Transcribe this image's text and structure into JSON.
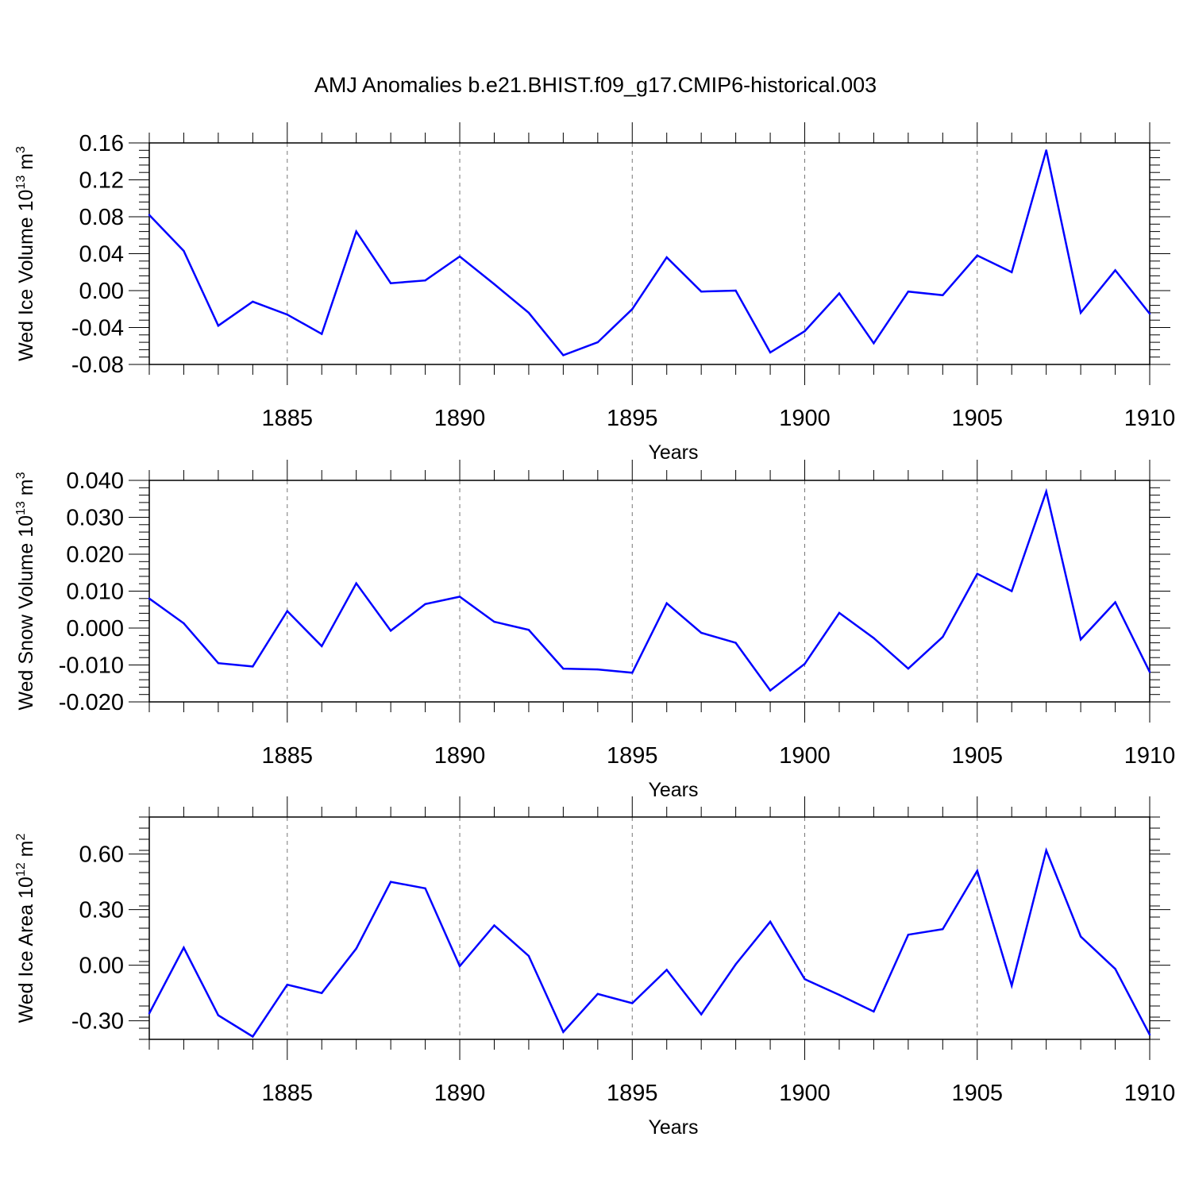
{
  "title": "AMJ Anomalies b.e21.BHIST.f09_g17.CMIP6-historical.003",
  "colors": {
    "line": "#0000ff",
    "axis": "#000000",
    "grid": "#777777"
  },
  "chart_data": [
    {
      "type": "line",
      "ylabel": {
        "main": "Wed Ice Volume 10",
        "sup": "13",
        "unit": " m",
        "unit_sup": "3"
      },
      "xlabel": "Years",
      "xlim": [
        1881,
        1910
      ],
      "ylim": [
        -0.08,
        0.16
      ],
      "yticks": [
        "0.16",
        "0.12",
        "0.08",
        "0.04",
        "0.00",
        "-0.04",
        "-0.08"
      ],
      "ytick_values": [
        0.16,
        0.12,
        0.08,
        0.04,
        0.0,
        -0.04,
        -0.08
      ],
      "xticks": [
        "1885",
        "1890",
        "1895",
        "1900",
        "1905",
        "1910"
      ],
      "xtick_values": [
        1885,
        1890,
        1895,
        1900,
        1905,
        1910
      ],
      "grid": "vertical dashed at major x ticks",
      "x": [
        1881,
        1882,
        1883,
        1884,
        1885,
        1886,
        1887,
        1888,
        1889,
        1890,
        1891,
        1892,
        1893,
        1894,
        1895,
        1896,
        1897,
        1898,
        1899,
        1900,
        1901,
        1902,
        1903,
        1904,
        1905,
        1906,
        1907,
        1908,
        1909,
        1910
      ],
      "series": [
        {
          "values": [
            0.082,
            0.043,
            -0.038,
            -0.012,
            -0.026,
            -0.047,
            0.064,
            0.008,
            0.011,
            0.037,
            0.007,
            -0.024,
            -0.07,
            -0.056,
            -0.02,
            0.036,
            -0.001,
            0.0,
            -0.067,
            -0.044,
            -0.003,
            -0.057,
            -0.001,
            -0.005,
            0.038,
            0.02,
            0.152,
            -0.024,
            0.022,
            -0.025
          ]
        }
      ]
    },
    {
      "type": "line",
      "ylabel": {
        "main": "Wed Snow Volume 10",
        "sup": "13",
        "unit": " m",
        "unit_sup": "3"
      },
      "xlabel": "Years",
      "xlim": [
        1881,
        1910
      ],
      "ylim": [
        -0.02,
        0.04
      ],
      "yticks": [
        "0.040",
        "0.030",
        "0.020",
        "0.010",
        "0.000",
        "-0.010",
        "-0.020"
      ],
      "ytick_values": [
        0.04,
        0.03,
        0.02,
        0.01,
        0.0,
        -0.01,
        -0.02
      ],
      "xticks": [
        "1885",
        "1890",
        "1895",
        "1900",
        "1905",
        "1910"
      ],
      "xtick_values": [
        1885,
        1890,
        1895,
        1900,
        1905,
        1910
      ],
      "grid": "vertical dashed at major x ticks",
      "x": [
        1881,
        1882,
        1883,
        1884,
        1885,
        1886,
        1887,
        1888,
        1889,
        1890,
        1891,
        1892,
        1893,
        1894,
        1895,
        1896,
        1897,
        1898,
        1899,
        1900,
        1901,
        1902,
        1903,
        1904,
        1905,
        1906,
        1907,
        1908,
        1909,
        1910
      ],
      "series": [
        {
          "values": [
            0.008,
            0.0013,
            -0.0095,
            -0.0104,
            0.0046,
            -0.0049,
            0.0121,
            -0.0007,
            0.0065,
            0.0085,
            0.0017,
            -0.0005,
            -0.011,
            -0.0112,
            -0.0121,
            0.0067,
            -0.0013,
            -0.004,
            -0.0169,
            -0.0097,
            0.0041,
            -0.0027,
            -0.011,
            -0.0024,
            0.0147,
            0.01,
            0.037,
            -0.0031,
            0.007,
            -0.0119
          ]
        }
      ]
    },
    {
      "type": "line",
      "ylabel": {
        "main": "Wed Ice Area 10",
        "sup": "12",
        "unit": " m",
        "unit_sup": "2"
      },
      "xlabel": "Years",
      "xlim": [
        1881,
        1910
      ],
      "ylim": [
        -0.4,
        0.8
      ],
      "yticks": [
        "0.60",
        "0.30",
        "0.00",
        "-0.30"
      ],
      "ytick_values": [
        0.6,
        0.3,
        0.0,
        -0.3
      ],
      "xticks": [
        "1885",
        "1890",
        "1895",
        "1900",
        "1905",
        "1910"
      ],
      "xtick_values": [
        1885,
        1890,
        1895,
        1900,
        1905,
        1910
      ],
      "grid": "vertical dashed at major x ticks",
      "x": [
        1881,
        1882,
        1883,
        1884,
        1885,
        1886,
        1887,
        1888,
        1889,
        1890,
        1891,
        1892,
        1893,
        1894,
        1895,
        1896,
        1897,
        1898,
        1899,
        1900,
        1901,
        1902,
        1903,
        1904,
        1905,
        1906,
        1907,
        1908,
        1909,
        1910
      ],
      "series": [
        {
          "values": [
            -0.26,
            0.095,
            -0.27,
            -0.385,
            -0.105,
            -0.15,
            0.09,
            0.45,
            0.415,
            -0.005,
            0.215,
            0.05,
            -0.36,
            -0.155,
            -0.205,
            -0.025,
            -0.265,
            0.005,
            0.235,
            -0.075,
            -0.16,
            -0.25,
            0.165,
            0.195,
            0.51,
            -0.11,
            0.62,
            0.155,
            -0.02,
            -0.375
          ]
        }
      ]
    }
  ]
}
